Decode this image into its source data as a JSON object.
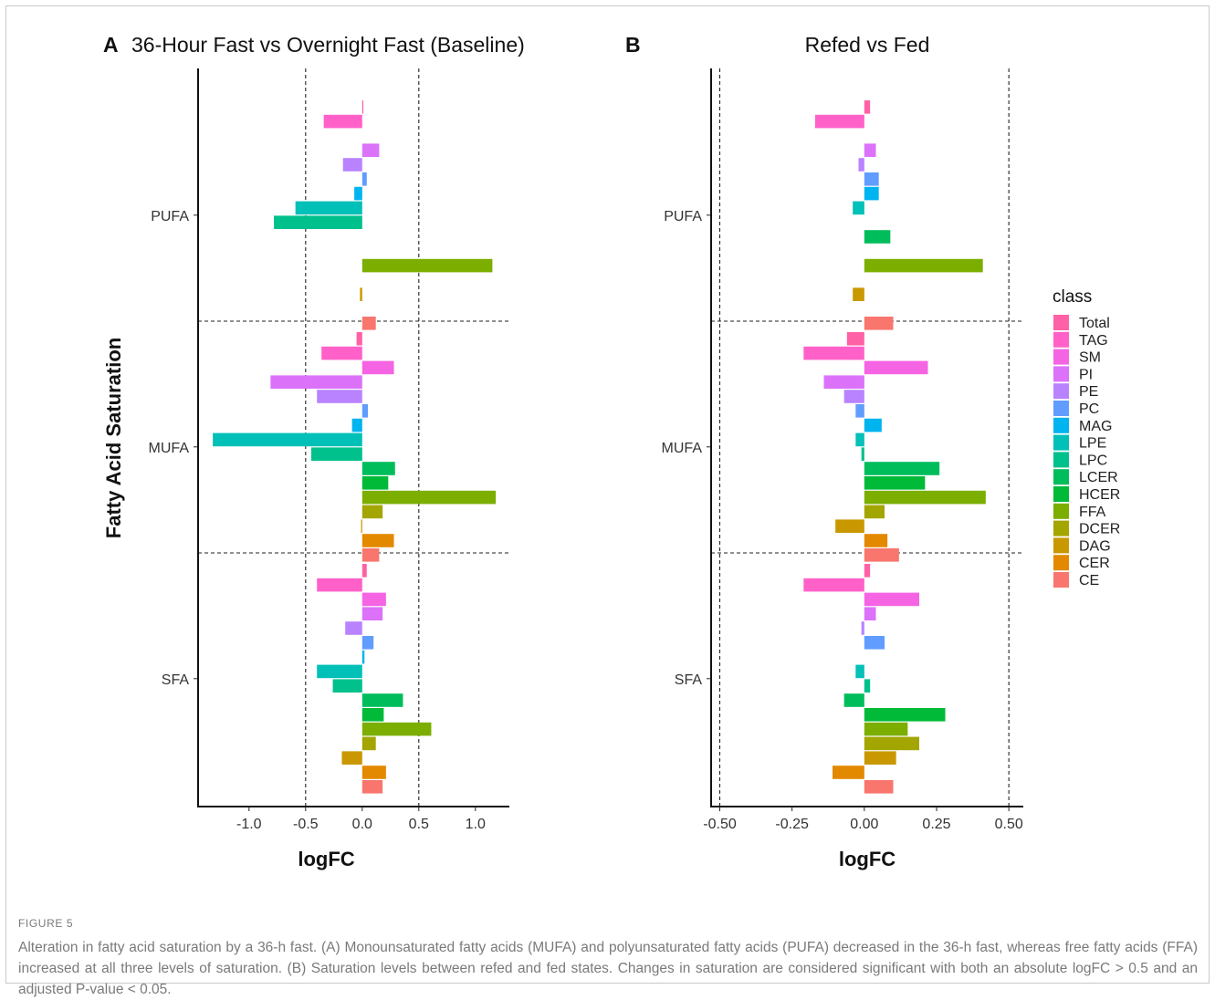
{
  "figure_label": "FIGURE 5",
  "caption": "Alteration in fatty acid saturation by a 36-h fast. (A) Monounsaturated fatty acids (MUFA) and polyunsaturated fatty acids (PUFA) decreased in the 36-h fast, whereas free fatty acids (FFA) increased at all three levels of saturation. (B) Saturation levels between refed and fed states. Changes in saturation are considered significant with both an absolute logFC > 0.5 and an adjusted P-value < 0.05.",
  "y_axis_title": "Fatty Acid Saturation",
  "legend": {
    "title": "class",
    "classes": [
      "Total",
      "TAG",
      "SM",
      "PI",
      "PE",
      "PC",
      "MAG",
      "LPE",
      "LPC",
      "LCER",
      "HCER",
      "FFA",
      "DCER",
      "DAG",
      "CER",
      "CE"
    ],
    "colors": [
      "#FF61A6",
      "#FF61C9",
      "#F564E3",
      "#DC71FA",
      "#B983FF",
      "#619CFF",
      "#00B4EF",
      "#00C0B8",
      "#00C08B",
      "#00BD5C",
      "#00BA38",
      "#7CAE00",
      "#A3A500",
      "#C99800",
      "#E38900",
      "#F8766D"
    ]
  },
  "chart_data": [
    {
      "type": "bar",
      "orientation": "horizontal",
      "panel": "A",
      "title": "36-Hour Fast vs Overnight Fast (Baseline)",
      "xlabel": "logFC",
      "xlim": [
        -1.45,
        1.3
      ],
      "xticks": [
        -1.0,
        -0.5,
        0.0,
        0.5,
        1.0
      ],
      "xtick_labels": [
        "-1.0",
        "-0.5",
        "0.0",
        "0.5",
        "1.0"
      ],
      "threshold_lines": [
        -0.5,
        0.5
      ],
      "categories": [
        "PUFA",
        "MUFA",
        "SFA"
      ],
      "series": [
        {
          "name": "Total",
          "values": [
            0.01,
            -0.05,
            0.04
          ]
        },
        {
          "name": "TAG",
          "values": [
            -0.34,
            -0.36,
            -0.4
          ]
        },
        {
          "name": "SM",
          "values": [
            0.0,
            0.28,
            0.21
          ]
        },
        {
          "name": "PI",
          "values": [
            0.15,
            -0.81,
            0.18
          ]
        },
        {
          "name": "PE",
          "values": [
            -0.17,
            -0.4,
            -0.15
          ]
        },
        {
          "name": "PC",
          "values": [
            0.04,
            0.05,
            0.1
          ]
        },
        {
          "name": "MAG",
          "values": [
            -0.07,
            -0.09,
            0.02
          ]
        },
        {
          "name": "LPE",
          "values": [
            -0.59,
            -1.32,
            -0.4
          ]
        },
        {
          "name": "LPC",
          "values": [
            -0.78,
            -0.45,
            -0.26
          ]
        },
        {
          "name": "LCER",
          "values": [
            0.0,
            0.29,
            0.36
          ]
        },
        {
          "name": "HCER",
          "values": [
            0.0,
            0.23,
            0.19
          ]
        },
        {
          "name": "FFA",
          "values": [
            1.15,
            1.18,
            0.61
          ]
        },
        {
          "name": "DCER",
          "values": [
            0.0,
            0.18,
            0.12
          ]
        },
        {
          "name": "DAG",
          "values": [
            -0.02,
            -0.01,
            -0.18
          ]
        },
        {
          "name": "CER",
          "values": [
            0.0,
            0.28,
            0.21
          ]
        },
        {
          "name": "CE",
          "values": [
            0.12,
            0.15,
            0.18
          ]
        }
      ]
    },
    {
      "type": "bar",
      "orientation": "horizontal",
      "panel": "B",
      "title": "Refed vs Fed",
      "xlabel": "logFC",
      "xlim": [
        -0.53,
        0.55
      ],
      "xticks": [
        -0.5,
        -0.25,
        0.0,
        0.25,
        0.5
      ],
      "xtick_labels": [
        "-0.50",
        "-0.25",
        "0.00",
        "0.25",
        "0.50"
      ],
      "threshold_lines": [
        -0.5,
        0.5
      ],
      "categories": [
        "PUFA",
        "MUFA",
        "SFA"
      ],
      "series": [
        {
          "name": "Total",
          "values": [
            0.02,
            -0.06,
            0.02
          ]
        },
        {
          "name": "TAG",
          "values": [
            -0.17,
            -0.21,
            -0.21
          ]
        },
        {
          "name": "SM",
          "values": [
            0.0,
            0.22,
            0.19
          ]
        },
        {
          "name": "PI",
          "values": [
            0.04,
            -0.14,
            0.04
          ]
        },
        {
          "name": "PE",
          "values": [
            -0.02,
            -0.07,
            -0.01
          ]
        },
        {
          "name": "PC",
          "values": [
            0.05,
            -0.03,
            0.07
          ]
        },
        {
          "name": "MAG",
          "values": [
            0.05,
            0.06,
            0.0
          ]
        },
        {
          "name": "LPE",
          "values": [
            -0.04,
            -0.03,
            -0.03
          ]
        },
        {
          "name": "LPC",
          "values": [
            0.0,
            -0.01,
            0.02
          ]
        },
        {
          "name": "LCER",
          "values": [
            0.09,
            0.26,
            -0.07
          ]
        },
        {
          "name": "HCER",
          "values": [
            0.0,
            0.21,
            0.28
          ]
        },
        {
          "name": "FFA",
          "values": [
            0.41,
            0.42,
            0.15
          ]
        },
        {
          "name": "DCER",
          "values": [
            0.0,
            0.07,
            0.19
          ]
        },
        {
          "name": "DAG",
          "values": [
            -0.04,
            -0.1,
            0.11
          ]
        },
        {
          "name": "CER",
          "values": [
            0.0,
            0.08,
            -0.11
          ]
        },
        {
          "name": "CE",
          "values": [
            0.1,
            0.12,
            0.1
          ]
        }
      ]
    }
  ]
}
